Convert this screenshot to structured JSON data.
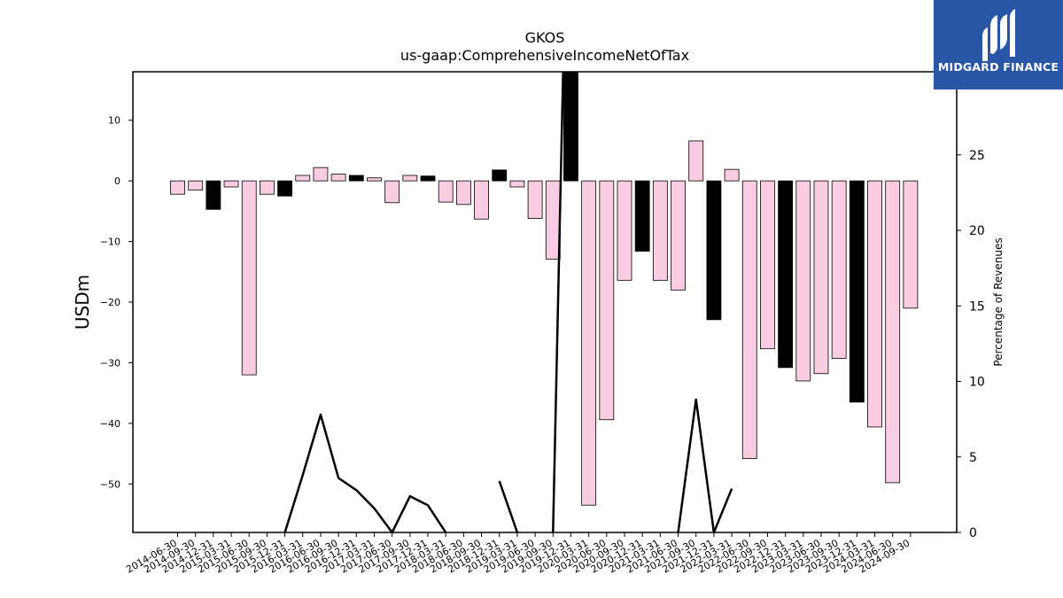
{
  "chart_data": {
    "type": "bar",
    "title": "GKOS",
    "subtitle": "us-gaap:ComprehensiveIncomeNetOfTax",
    "ylabel": "USDm",
    "y2label": "Percentage of Revenues",
    "ylim": [
      -58,
      18
    ],
    "y2lim": [
      0,
      30.5
    ],
    "yticks": [
      10,
      0,
      -10,
      -20,
      -30,
      -40,
      -50
    ],
    "y2ticks": [
      0,
      5,
      10,
      15,
      20,
      25,
      30
    ],
    "categories": [
      "2014-06-30",
      "2014-09-30",
      "2014-12-31",
      "2015-03-31",
      "2015-06-30",
      "2015-09-30",
      "2015-12-31",
      "2016-03-31",
      "2016-06-30",
      "2016-09-30",
      "2016-12-31",
      "2017-03-31",
      "2017-06-30",
      "2017-09-30",
      "2017-12-31",
      "2018-03-31",
      "2018-06-30",
      "2018-09-30",
      "2018-12-31",
      "2019-03-31",
      "2019-06-30",
      "2019-09-30",
      "2019-12-31",
      "2020-03-31",
      "2020-06-30",
      "2020-09-30",
      "2020-12-31",
      "2021-03-31",
      "2021-06-30",
      "2021-09-30",
      "2021-12-31",
      "2022-03-31",
      "2022-06-30",
      "2022-09-30",
      "2022-12-31",
      "2023-03-31",
      "2023-06-30",
      "2023-09-30",
      "2023-12-31",
      "2024-03-31",
      "2024-06-30",
      "2024-09-30"
    ],
    "values": [
      -2.2,
      -1.5,
      -4.7,
      -1.0,
      -32.0,
      -2.2,
      -2.5,
      0.9,
      2.2,
      1.1,
      0.9,
      0.5,
      -3.6,
      0.9,
      0.8,
      -3.5,
      -3.9,
      -6.3,
      1.8,
      -1.0,
      -6.2,
      -12.9,
      18.0,
      -53.5,
      -39.4,
      -16.4,
      -11.6,
      -16.4,
      -18.0,
      6.6,
      -22.9,
      1.9,
      -45.8,
      -27.7,
      -30.8,
      -33.0,
      -31.8,
      -29.3,
      -36.5,
      -40.6,
      -49.8,
      -21.0
    ],
    "highlight": [
      false,
      false,
      true,
      false,
      false,
      false,
      true,
      false,
      false,
      false,
      true,
      false,
      false,
      false,
      true,
      false,
      false,
      false,
      true,
      false,
      false,
      false,
      true,
      false,
      false,
      false,
      true,
      false,
      false,
      false,
      true,
      false,
      false,
      false,
      true,
      false,
      false,
      false,
      true,
      false,
      false,
      false
    ],
    "line_series": {
      "name": "Percentage of Revenues",
      "values": [
        null,
        null,
        null,
        null,
        null,
        null,
        0,
        3.8,
        7.8,
        3.6,
        2.8,
        1.6,
        0,
        2.4,
        1.8,
        0,
        null,
        null,
        3.4,
        0,
        null,
        0,
        54,
        null,
        null,
        null,
        null,
        null,
        0,
        8.8,
        0,
        2.9,
        null,
        null,
        null,
        null,
        null,
        null,
        null,
        null,
        null,
        null
      ]
    },
    "colors": {
      "negative_bar": "#f9cce1",
      "positive_bar": "#f9cce1",
      "highlight_bar": "#000000",
      "bar_edge": "#000000",
      "line": "#000000"
    },
    "grid": false,
    "legend": "none"
  },
  "brand": {
    "name": "MIDGARD FINANCE",
    "logo_icon": "midgard-m-logo",
    "color": "#2a56a8"
  }
}
